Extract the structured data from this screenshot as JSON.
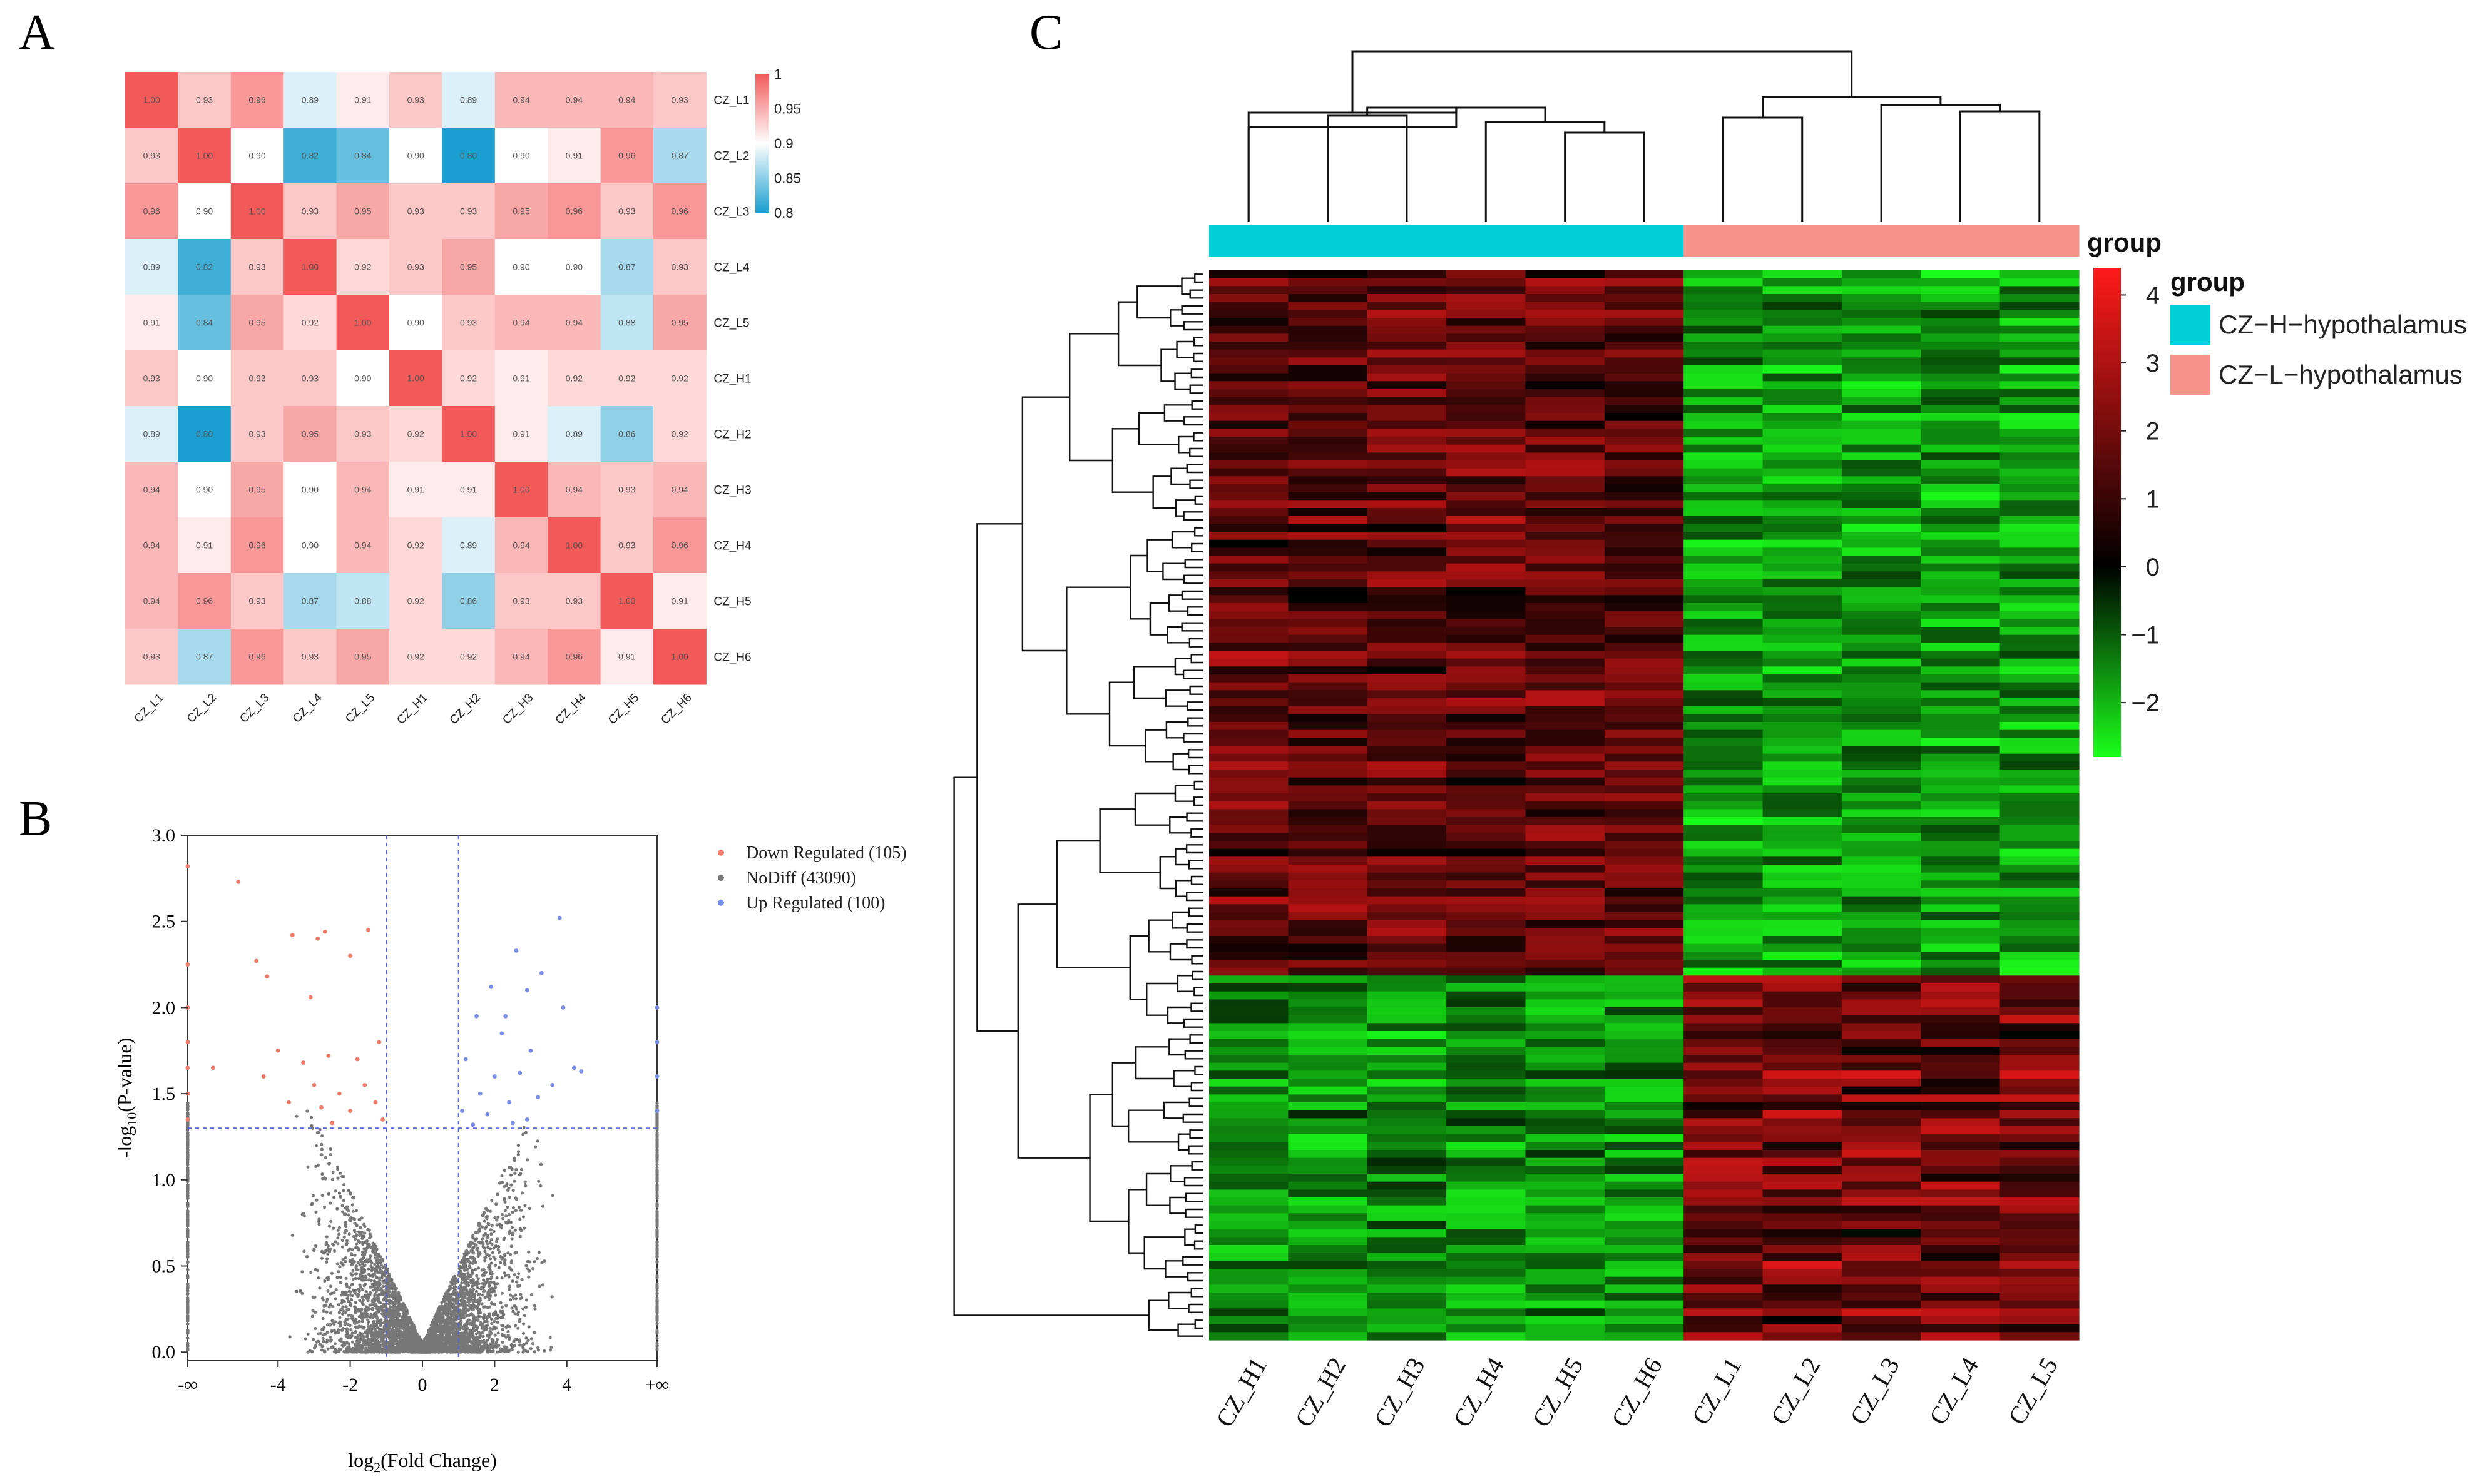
{
  "panel_labels": {
    "a": "A",
    "b": "B",
    "c": "C"
  },
  "chart_data": [
    {
      "type": "heatmap",
      "id": "correlation",
      "title": "",
      "columns": [
        "CZ_L1",
        "CZ_L2",
        "CZ_L3",
        "CZ_L4",
        "CZ_L5",
        "CZ_H1",
        "CZ_H2",
        "CZ_H3",
        "CZ_H4",
        "CZ_H5",
        "CZ_H6"
      ],
      "rows": [
        "CZ_L1",
        "CZ_L2",
        "CZ_L3",
        "CZ_L4",
        "CZ_L5",
        "CZ_H1",
        "CZ_H2",
        "CZ_H3",
        "CZ_H4",
        "CZ_H5",
        "CZ_H6"
      ],
      "values": [
        [
          1.0,
          0.93,
          0.96,
          0.89,
          0.91,
          0.93,
          0.89,
          0.94,
          0.94,
          0.94,
          0.93
        ],
        [
          0.93,
          1.0,
          0.9,
          0.82,
          0.84,
          0.9,
          0.8,
          0.9,
          0.91,
          0.96,
          0.87
        ],
        [
          0.96,
          0.9,
          1.0,
          0.93,
          0.95,
          0.93,
          0.93,
          0.95,
          0.96,
          0.93,
          0.96
        ],
        [
          0.89,
          0.82,
          0.93,
          1.0,
          0.92,
          0.93,
          0.95,
          0.9,
          0.9,
          0.87,
          0.93
        ],
        [
          0.91,
          0.84,
          0.95,
          0.92,
          1.0,
          0.9,
          0.93,
          0.94,
          0.94,
          0.88,
          0.95
        ],
        [
          0.93,
          0.9,
          0.93,
          0.93,
          0.9,
          1.0,
          0.92,
          0.91,
          0.92,
          0.92,
          0.92
        ],
        [
          0.89,
          0.8,
          0.93,
          0.95,
          0.93,
          0.92,
          1.0,
          0.91,
          0.89,
          0.86,
          0.92
        ],
        [
          0.94,
          0.9,
          0.95,
          0.9,
          0.94,
          0.91,
          0.91,
          1.0,
          0.94,
          0.93,
          0.94
        ],
        [
          0.94,
          0.91,
          0.96,
          0.9,
          0.94,
          0.92,
          0.89,
          0.94,
          1.0,
          0.93,
          0.96
        ],
        [
          0.94,
          0.96,
          0.93,
          0.87,
          0.88,
          0.92,
          0.86,
          0.93,
          0.93,
          1.0,
          0.91
        ],
        [
          0.93,
          0.87,
          0.96,
          0.93,
          0.95,
          0.92,
          0.92,
          0.94,
          0.96,
          0.91,
          1.0
        ]
      ],
      "colorbar": {
        "ticks": [
          "1",
          "0.95",
          "0.9",
          "0.85",
          "0.8"
        ],
        "min": 0.8,
        "max": 1.0,
        "low_color": "#1a9fd0",
        "mid_color": "#ffffff",
        "high_color": "#f25a5a"
      }
    },
    {
      "type": "scatter",
      "id": "volcano",
      "xlabel_prefix": "log",
      "xlabel_sub": "2",
      "xlabel_rest": "(Fold Change)",
      "ylabel_prefix": "-log",
      "ylabel_sub": "10",
      "ylabel_rest": "(P-value)",
      "x_ticks": [
        "-∞",
        "-4",
        "-2",
        "0",
        "2",
        "4",
        "+∞"
      ],
      "y_ticks": [
        "0.0",
        "0.5",
        "1.0",
        "1.5",
        "2.0",
        "2.5",
        "3.0"
      ],
      "xlim": [
        -6.5,
        6.5
      ],
      "ylim": [
        -0.05,
        3.0
      ],
      "thresholds": {
        "fold_change": [
          -1,
          1
        ],
        "p_value_line": 1.3
      },
      "legend": [
        {
          "label": "Down Regulated (105)",
          "color": "#f07a6a"
        },
        {
          "label": "NoDiff (43090)",
          "color": "#777777"
        },
        {
          "label": "Up Regulated (100)",
          "color": "#7a8ee8"
        }
      ],
      "series": [
        {
          "name": "Down Regulated",
          "color": "#f07a6a",
          "points": [
            [
              -6.5,
              2.82
            ],
            [
              -5.1,
              2.73
            ],
            [
              -6.5,
              2.25
            ],
            [
              -4.6,
              2.27
            ],
            [
              -6.5,
              2.0
            ],
            [
              -4.3,
              2.18
            ],
            [
              -3.6,
              2.42
            ],
            [
              -2.9,
              2.4
            ],
            [
              -2.7,
              2.44
            ],
            [
              -1.5,
              2.45
            ],
            [
              -2.0,
              2.3
            ],
            [
              -3.1,
              2.06
            ],
            [
              -4.4,
              1.6
            ],
            [
              -4.0,
              1.75
            ],
            [
              -3.3,
              1.68
            ],
            [
              -2.6,
              1.72
            ],
            [
              -1.8,
              1.7
            ],
            [
              -1.2,
              1.8
            ],
            [
              -3.0,
              1.55
            ],
            [
              -2.3,
              1.5
            ],
            [
              -1.6,
              1.55
            ],
            [
              -2.8,
              1.42
            ],
            [
              -2.0,
              1.4
            ],
            [
              -1.3,
              1.45
            ],
            [
              -6.5,
              1.8
            ],
            [
              -6.5,
              1.65
            ],
            [
              -6.5,
              1.5
            ],
            [
              -6.5,
              1.35
            ],
            [
              -5.8,
              1.65
            ],
            [
              -1.1,
              1.35
            ],
            [
              -3.7,
              1.45
            ],
            [
              -2.5,
              1.33
            ]
          ]
        },
        {
          "name": "Up Regulated",
          "color": "#7a8ee8",
          "points": [
            [
              3.8,
              2.52
            ],
            [
              2.6,
              2.33
            ],
            [
              3.3,
              2.2
            ],
            [
              2.9,
              2.1
            ],
            [
              1.9,
              2.12
            ],
            [
              3.9,
              2.0
            ],
            [
              4.2,
              1.65
            ],
            [
              1.5,
              1.95
            ],
            [
              2.2,
              1.85
            ],
            [
              2.3,
              1.95
            ],
            [
              3.0,
              1.75
            ],
            [
              1.2,
              1.7
            ],
            [
              2.0,
              1.6
            ],
            [
              2.7,
              1.62
            ],
            [
              1.6,
              1.5
            ],
            [
              2.4,
              1.45
            ],
            [
              3.2,
              1.48
            ],
            [
              1.1,
              1.4
            ],
            [
              1.8,
              1.38
            ],
            [
              2.9,
              1.35
            ],
            [
              6.5,
              2.0
            ],
            [
              6.5,
              1.8
            ],
            [
              6.5,
              1.6
            ],
            [
              6.5,
              1.4
            ],
            [
              3.6,
              1.55
            ],
            [
              1.4,
              1.32
            ],
            [
              4.4,
              1.63
            ],
            [
              2.5,
              1.33
            ]
          ]
        }
      ]
    },
    {
      "type": "heatmap",
      "id": "expression",
      "columns": [
        "CZ_H1",
        "CZ_H2",
        "CZ_H3",
        "CZ_H4",
        "CZ_H5",
        "CZ_H6",
        "CZ_L1",
        "CZ_L2",
        "CZ_L3",
        "CZ_L4",
        "CZ_L5"
      ],
      "groups": [
        "H",
        "H",
        "H",
        "H",
        "H",
        "H",
        "L",
        "L",
        "L",
        "L",
        "L"
      ],
      "n_rows": 135,
      "pattern": "Top block (about 66% of rows): high in H samples, low (green) in L samples; bottom block: low in H samples, high (red) in L samples",
      "colorbar_title": "group",
      "colorbar_ticks": [
        "4",
        "3",
        "2",
        "1",
        "0",
        "-1",
        "-2"
      ],
      "colorbar_range": [
        -2.8,
        4.4
      ],
      "colors": {
        "high": "#ff1a1a",
        "zero": "#000000",
        "low": "#1aff1a"
      },
      "legend_title": "group",
      "legend": [
        {
          "label": "CZ−H−hypothalamus",
          "color": "#00ced8"
        },
        {
          "label": "CZ−L−hypothalamus",
          "color": "#f5938a"
        }
      ]
    }
  ]
}
